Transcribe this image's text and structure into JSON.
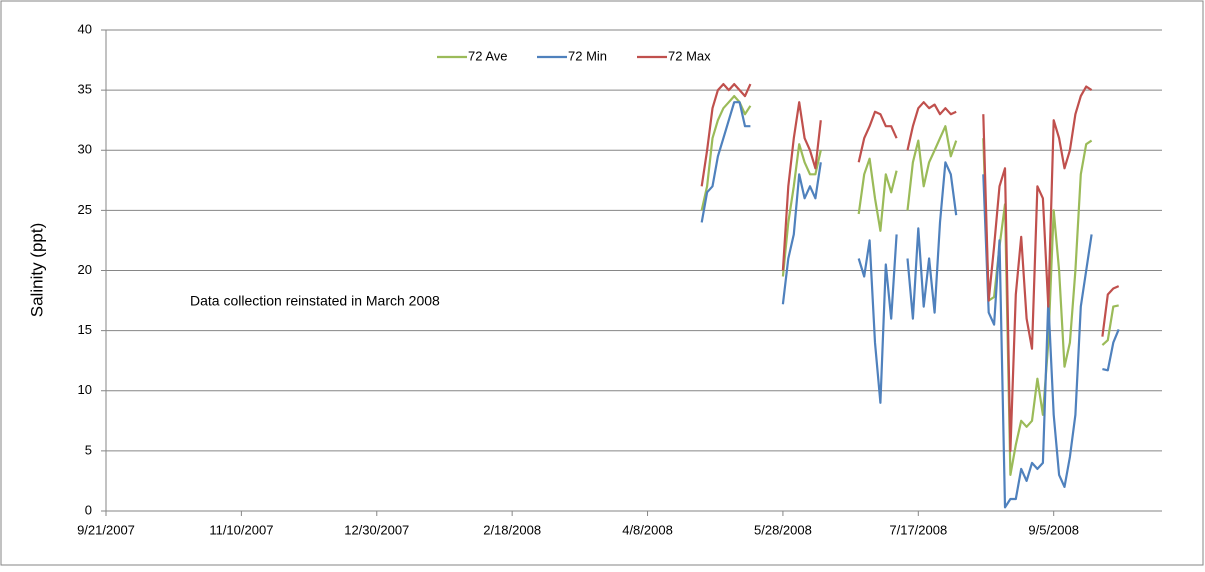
{
  "chart_data": {
    "type": "line",
    "y_label": "Salinity (ppt)",
    "annotation": "Data collection reinstated in March 2008",
    "x": [
      "4/28/2008",
      "4/30/2008",
      "5/2/2008",
      "5/4/2008",
      "5/6/2008",
      "5/8/2008",
      "5/10/2008",
      "5/12/2008",
      "5/14/2008",
      "5/16/2008",
      "5/18/2008",
      "5/20/2008",
      "5/22/2008",
      "5/24/2008",
      "5/26/2008",
      "5/28/2008",
      "5/30/2008",
      "6/1/2008",
      "6/3/2008",
      "6/5/2008",
      "6/7/2008",
      "6/9/2008",
      "6/11/2008",
      "6/13/2008",
      "6/15/2008",
      "6/17/2008",
      "6/19/2008",
      "6/21/2008",
      "6/23/2008",
      "6/25/2008",
      "6/27/2008",
      "6/29/2008",
      "7/1/2008",
      "7/3/2008",
      "7/5/2008",
      "7/7/2008",
      "7/9/2008",
      "7/11/2008",
      "7/13/2008",
      "7/15/2008",
      "7/17/2008",
      "7/19/2008",
      "7/21/2008",
      "7/23/2008",
      "7/25/2008",
      "7/27/2008",
      "7/29/2008",
      "7/31/2008",
      "8/2/2008",
      "8/4/2008",
      "8/6/2008",
      "8/8/2008",
      "8/10/2008",
      "8/12/2008",
      "8/14/2008",
      "8/16/2008",
      "8/18/2008",
      "8/20/2008",
      "8/22/2008",
      "8/24/2008",
      "8/26/2008",
      "8/28/2008",
      "8/30/2008",
      "9/1/2008",
      "9/3/2008",
      "9/5/2008",
      "9/7/2008",
      "9/9/2008",
      "9/11/2008",
      "9/13/2008",
      "9/15/2008",
      "9/17/2008",
      "9/19/2008",
      "9/21/2008",
      "9/23/2008",
      "9/25/2008",
      "9/27/2008",
      "9/29/2008"
    ],
    "series": [
      {
        "name": "72 Ave",
        "color": "#9bbb59",
        "values": [
          25,
          27,
          31,
          32.5,
          33.5,
          34,
          34.5,
          34,
          33,
          33.7,
          null,
          null,
          null,
          null,
          null,
          19.5,
          24,
          27,
          30.5,
          29,
          28,
          28,
          30,
          null,
          null,
          null,
          null,
          null,
          null,
          24.7,
          28,
          29.3,
          26,
          23.3,
          28,
          26.5,
          28.3,
          null,
          25,
          29,
          30.8,
          27,
          29,
          30,
          31,
          32,
          29.5,
          30.8,
          null,
          null,
          null,
          null,
          31,
          17.5,
          17.8,
          22,
          25.5,
          3,
          5.5,
          7.5,
          7,
          7.5,
          11,
          8,
          14,
          25,
          20,
          12,
          14,
          20,
          28,
          30.5,
          30.8,
          null,
          13.8,
          14.2,
          17,
          17.1
        ]
      },
      {
        "name": "72 Min",
        "color": "#4f81bd",
        "values": [
          24,
          26.5,
          27,
          29.5,
          31,
          32.5,
          34,
          34,
          32,
          32,
          null,
          null,
          null,
          null,
          null,
          17.2,
          21,
          23,
          28,
          26,
          27,
          26,
          29,
          null,
          null,
          null,
          null,
          null,
          null,
          21,
          19.5,
          22.5,
          14,
          9,
          20.5,
          16,
          23,
          null,
          21,
          16,
          23.5,
          17,
          21,
          16.5,
          24,
          29,
          28,
          24.6,
          null,
          null,
          null,
          null,
          28,
          16.5,
          15.5,
          22.5,
          0.3,
          1,
          1,
          3.5,
          2.5,
          4,
          3.5,
          4,
          17.5,
          8,
          3,
          2,
          4.5,
          8,
          17,
          20,
          23,
          null,
          11.8,
          11.7,
          14,
          15.1
        ]
      },
      {
        "name": "72 Max",
        "color": "#c0504d",
        "values": [
          27,
          30,
          33.5,
          35,
          35.5,
          35,
          35.5,
          35,
          34.5,
          35.5,
          null,
          null,
          null,
          null,
          null,
          20,
          27,
          31,
          34,
          31,
          30,
          28.5,
          32.5,
          null,
          null,
          null,
          null,
          null,
          null,
          29,
          31,
          32,
          33.2,
          33,
          32,
          32,
          31,
          null,
          30,
          32,
          33.5,
          34,
          33.5,
          33.8,
          33,
          33.5,
          33,
          33.2,
          null,
          null,
          null,
          null,
          33,
          17.5,
          22,
          27,
          28.5,
          5,
          18,
          22.8,
          16,
          13.5,
          27,
          26,
          17,
          32.5,
          31,
          28.5,
          30,
          33,
          34.5,
          35.3,
          35,
          null,
          14.5,
          18,
          18.5,
          18.7
        ]
      }
    ],
    "xlim": [
      "9/21/2007",
      "10/15/2008"
    ],
    "xticks": [
      "9/21/2007",
      "11/10/2007",
      "12/30/2007",
      "2/18/2008",
      "4/8/2008",
      "5/28/2008",
      "7/17/2008",
      "9/5/2008"
    ],
    "ylim": [
      0,
      40
    ],
    "yticks": [
      0,
      5,
      10,
      15,
      20,
      25,
      30,
      35,
      40
    ],
    "grid": true
  }
}
